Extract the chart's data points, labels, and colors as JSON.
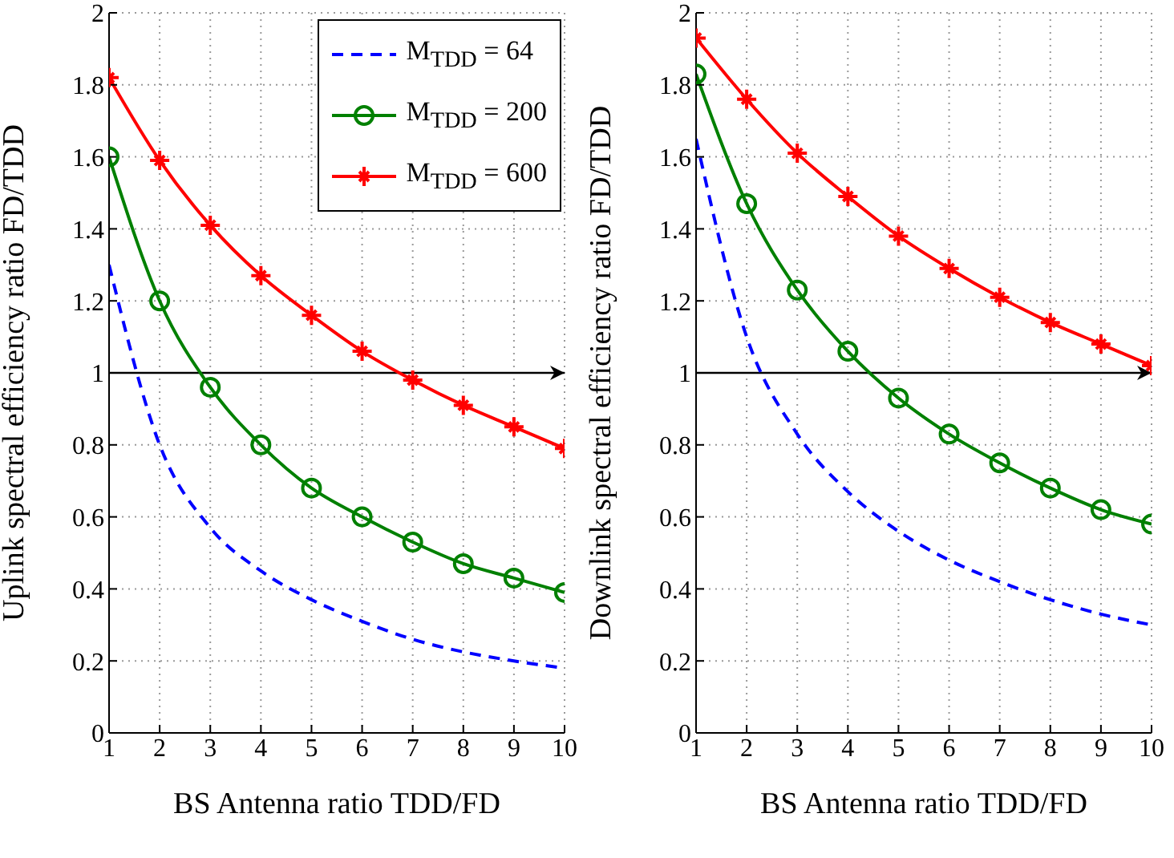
{
  "chart_data": [
    {
      "type": "line",
      "xlabel": "BS Antenna ratio TDD/FD",
      "ylabel": "Uplink spectral efficiency ratio FD/TDD",
      "x": [
        1,
        2,
        3,
        4,
        5,
        6,
        7,
        8,
        9,
        10
      ],
      "xlim": [
        1,
        10
      ],
      "xticks": [
        1,
        2,
        3,
        4,
        5,
        6,
        7,
        8,
        9,
        10
      ],
      "ylim": [
        0,
        2
      ],
      "yticks": [
        0,
        0.2,
        0.4,
        0.6,
        0.8,
        1,
        1.2,
        1.4,
        1.6,
        1.8,
        2
      ],
      "grid": true,
      "legend": "top right",
      "series": [
        {
          "name": "M$_{TDD}$ = 64",
          "color": "#0000ff",
          "marker": "none",
          "line_style": "dashed",
          "values": [
            1.3,
            0.8,
            0.57,
            0.45,
            0.37,
            0.31,
            0.26,
            0.225,
            0.2,
            0.18
          ]
        },
        {
          "name": "M$_{TDD}$ = 200",
          "color": "#008000",
          "marker": "circle",
          "line_style": "solid",
          "values": [
            1.6,
            1.2,
            0.96,
            0.8,
            0.68,
            0.6,
            0.53,
            0.47,
            0.43,
            0.39
          ]
        },
        {
          "name": "M$_{TDD}$ = 600",
          "color": "#ff0000",
          "marker": "cross",
          "line_style": "solid",
          "values": [
            1.82,
            1.59,
            1.41,
            1.27,
            1.16,
            1.06,
            0.98,
            0.91,
            0.85,
            0.79
          ]
        }
      ],
      "ref_lines": [
        {
          "axis": "y",
          "value": 1,
          "color": "#000000"
        }
      ]
    },
    {
      "type": "line",
      "xlabel": "BS Antenna ratio TDD/FD",
      "ylabel": "Downlink spectral efficiency ratio FD/TDD",
      "x": [
        1,
        2,
        3,
        4,
        5,
        6,
        7,
        8,
        9,
        10
      ],
      "xlim": [
        1,
        10
      ],
      "xticks": [
        1,
        2,
        3,
        4,
        5,
        6,
        7,
        8,
        9,
        10
      ],
      "ylim": [
        0,
        2
      ],
      "yticks": [
        0,
        0.2,
        0.4,
        0.6,
        0.8,
        1,
        1.2,
        1.4,
        1.6,
        1.8,
        2
      ],
      "grid": true,
      "series": [
        {
          "color": "#0000ff",
          "marker": "none",
          "line_style": "dashed",
          "values": [
            1.65,
            1.1,
            0.83,
            0.67,
            0.56,
            0.48,
            0.42,
            0.37,
            0.33,
            0.3
          ]
        },
        {
          "color": "#008000",
          "marker": "circle",
          "line_style": "solid",
          "values": [
            1.83,
            1.47,
            1.23,
            1.06,
            0.93,
            0.83,
            0.75,
            0.68,
            0.62,
            0.58
          ]
        },
        {
          "color": "#ff0000",
          "marker": "cross",
          "line_style": "solid",
          "values": [
            1.93,
            1.76,
            1.61,
            1.49,
            1.38,
            1.29,
            1.21,
            1.14,
            1.08,
            1.02
          ]
        }
      ],
      "ref_lines": [
        {
          "axis": "y",
          "value": 1,
          "color": "#000000"
        }
      ]
    }
  ]
}
